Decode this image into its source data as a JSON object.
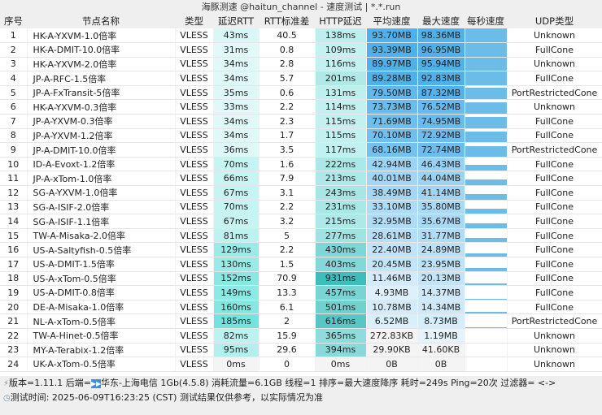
{
  "title": "海豚测速 @haitun_channel - 速度测试 | *.*.run",
  "headers": [
    "序号",
    "节点名称",
    "类型",
    "延迟RTT",
    "RTT标准差",
    "HTTP延迟",
    "平均速度",
    "最大速度",
    "每秒速度",
    "UDP类型"
  ],
  "rows": [
    [
      "1",
      "HK-A-YXVM-1.0倍率",
      "VLESS",
      "43ms",
      "40.5",
      "138ms",
      "93.70MB",
      "98.36MB",
      "Unknown"
    ],
    [
      "2",
      "HK-A-DMIT-10.0倍率",
      "VLESS",
      "31ms",
      "0.8",
      "109ms",
      "93.39MB",
      "96.95MB",
      "FullCone"
    ],
    [
      "3",
      "HK-A-YXVM-2.0倍率",
      "VLESS",
      "34ms",
      "2.8",
      "116ms",
      "89.97MB",
      "95.94MB",
      "Unknown"
    ],
    [
      "4",
      "JP-A-RFC-1.5倍率",
      "VLESS",
      "34ms",
      "5.7",
      "201ms",
      "89.28MB",
      "92.83MB",
      "FullCone"
    ],
    [
      "5",
      "JP-A-FxTransit-5倍率",
      "VLESS",
      "35ms",
      "0.6",
      "131ms",
      "79.50MB",
      "87.32MB",
      "PortRestrictedCone"
    ],
    [
      "6",
      "HK-A-YXVM-0.3倍率",
      "VLESS",
      "33ms",
      "2.2",
      "114ms",
      "73.73MB",
      "76.52MB",
      "Unknown"
    ],
    [
      "7",
      "JP-A-YXVM-0.3倍率",
      "VLESS",
      "34ms",
      "2.3",
      "115ms",
      "71.69MB",
      "74.95MB",
      "FullCone"
    ],
    [
      "8",
      "JP-A-YXVM-1.2倍率",
      "VLESS",
      "34ms",
      "1.7",
      "115ms",
      "70.10MB",
      "72.92MB",
      "FullCone"
    ],
    [
      "9",
      "JP-A-DMIT-10.0倍率",
      "VLESS",
      "36ms",
      "3.5",
      "117ms",
      "68.16MB",
      "72.74MB",
      "PortRestrictedCone"
    ],
    [
      "10",
      "ID-A-Evoxt-1.2倍率",
      "VLESS",
      "70ms",
      "1.6",
      "222ms",
      "42.94MB",
      "46.43MB",
      "FullCone"
    ],
    [
      "11",
      "JP-A-xTom-1.0倍率",
      "VLESS",
      "66ms",
      "7.9",
      "213ms",
      "40.01MB",
      "44.04MB",
      "FullCone"
    ],
    [
      "12",
      "SG-A-YXVM-1.0倍率",
      "VLESS",
      "67ms",
      "3.1",
      "243ms",
      "38.49MB",
      "41.14MB",
      "FullCone"
    ],
    [
      "13",
      "SG-A-ISIF-2.0倍率",
      "VLESS",
      "70ms",
      "2.2",
      "231ms",
      "33.10MB",
      "35.80MB",
      "FullCone"
    ],
    [
      "14",
      "SG-A-ISIF-1.1倍率",
      "VLESS",
      "67ms",
      "3.2",
      "215ms",
      "32.95MB",
      "35.67MB",
      "FullCone"
    ],
    [
      "15",
      "TW-A-Misaka-2.0倍率",
      "VLESS",
      "81ms",
      "5",
      "277ms",
      "28.61MB",
      "31.77MB",
      "FullCone"
    ],
    [
      "16",
      "US-A-Saltyfish-0.5倍率",
      "VLESS",
      "129ms",
      "2.2",
      "430ms",
      "22.40MB",
      "24.89MB",
      "FullCone"
    ],
    [
      "17",
      "US-A-DMIT-1.5倍率",
      "VLESS",
      "130ms",
      "1.5",
      "403ms",
      "20.45MB",
      "23.95MB",
      "FullCone"
    ],
    [
      "18",
      "US-A-xTom-0.5倍率",
      "VLESS",
      "152ms",
      "70.9",
      "931ms",
      "11.46MB",
      "20.13MB",
      "FullCone"
    ],
    [
      "19",
      "US-A-DMIT-0.8倍率",
      "VLESS",
      "149ms",
      "13.3",
      "457ms",
      "4.93MB",
      "14.37MB",
      "FullCone"
    ],
    [
      "20",
      "DE-A-Misaka-1.0倍率",
      "VLESS",
      "160ms",
      "6.1",
      "501ms",
      "10.78MB",
      "14.34MB",
      "FullCone"
    ],
    [
      "21",
      "NL-A-xTom-0.5倍率",
      "VLESS",
      "185ms",
      "2",
      "616ms",
      "6.52MB",
      "8.73MB",
      "PortRestrictedCone"
    ],
    [
      "22",
      "TW-A-Hinet-0.5倍率",
      "VLESS",
      "82ms",
      "15.9",
      "365ms",
      "272.83KB",
      "1.19MB",
      "Unknown"
    ],
    [
      "23",
      "MY-A-Terabix-1.2倍率",
      "VLESS",
      "95ms",
      "29.6",
      "394ms",
      "29.90KB",
      "41.60KB",
      "Unknown"
    ],
    [
      "24",
      "UK-A-xTom-0.5倍率",
      "VLESS",
      "0ms",
      "0",
      "0ms",
      "0B",
      "0B",
      "Unknown"
    ]
  ],
  "footer": {
    "line1": "版本=1.11.1  后端=",
    "backend": "华东-上海电信 1Gb(4.5.8) 消耗流量=6.1GB  线程=1  排序=最大速度降序  耗时=249s  Ping=20次  过滤器= <->",
    "line2": "测试时间: 2025-06-09T16:23:25 (CST)  测试结果仅供参考，以实际情况为准",
    "icons": [
      "plug-icon",
      "fast-forward-icon",
      "clock-icon"
    ]
  },
  "colors": {
    "header_bg": "#efefef",
    "rtt": "#c8f3f2",
    "http": "#5fd8d6",
    "speed": "#4fb0ea",
    "spark": "#6cbcea"
  }
}
